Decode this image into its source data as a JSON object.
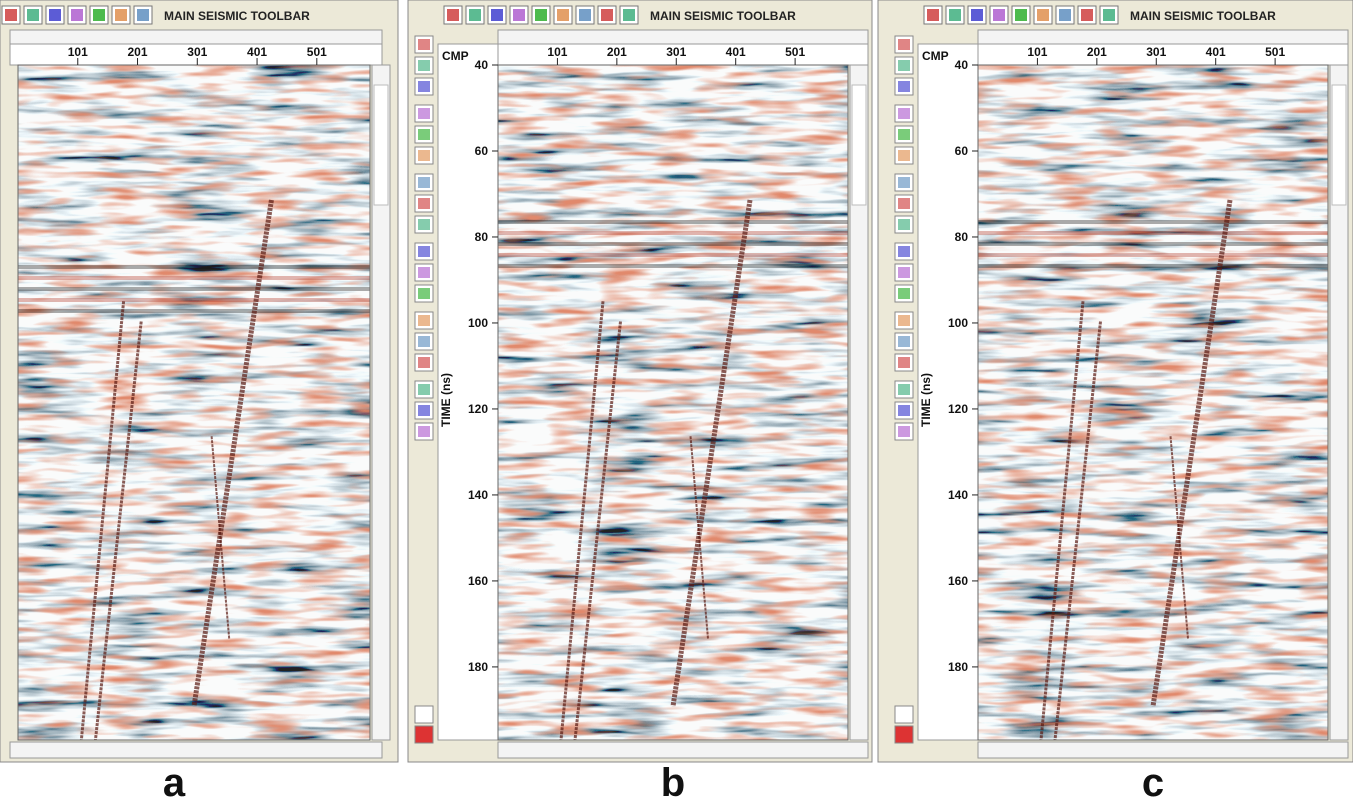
{
  "panels": [
    {
      "toolbar_title": "MAIN SEISMIC TOOLBAR",
      "xlim": [
        1,
        590
      ],
      "xticks": [
        101,
        201,
        301,
        401,
        501
      ],
      "caption": "a"
    },
    {
      "toolbar_title": "MAIN SEISMIC TOOLBAR",
      "x_label": "CMP",
      "y_label": "TIME (ns)",
      "xlim": [
        1,
        590
      ],
      "xticks": [
        101,
        201,
        301,
        401,
        501
      ],
      "ylim": [
        40,
        197
      ],
      "yticks": [
        40,
        60,
        80,
        100,
        120,
        140,
        160,
        180
      ],
      "caption": "b"
    },
    {
      "toolbar_title": "MAIN SEISMIC TOOLBAR",
      "x_label": "CMP",
      "y_label": "TIME (ns)",
      "xlim": [
        1,
        590
      ],
      "xticks": [
        101,
        201,
        301,
        401,
        501
      ],
      "ylim": [
        40,
        197
      ],
      "yticks": [
        40,
        60,
        80,
        100,
        120,
        140,
        160,
        180
      ],
      "caption": "c"
    }
  ]
}
